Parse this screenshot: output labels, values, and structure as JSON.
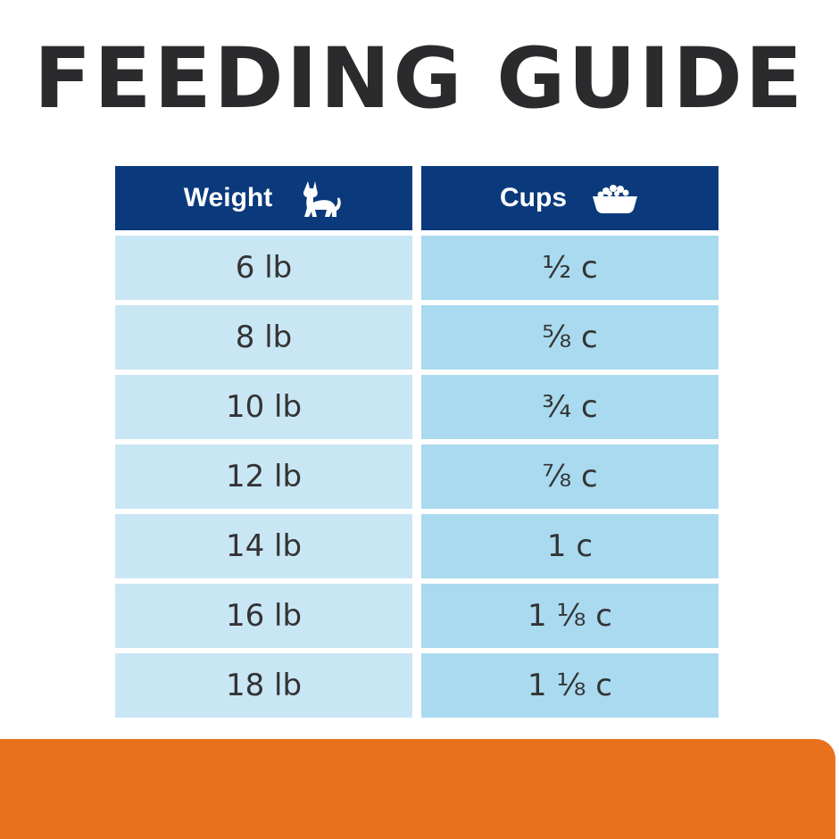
{
  "title": "FEEDING GUIDE",
  "table": {
    "headers": {
      "weight_label": "Weight",
      "weight_icon": "cat-icon",
      "cups_label": "Cups",
      "cups_icon": "food-bowl-icon"
    },
    "rows": [
      {
        "weight": "6 lb",
        "cups": "½ c"
      },
      {
        "weight": "8 lb",
        "cups": "⅝ c"
      },
      {
        "weight": "10 lb",
        "cups": "¾ c"
      },
      {
        "weight": "12 lb",
        "cups": "⅞ c"
      },
      {
        "weight": "14 lb",
        "cups": "1 c"
      },
      {
        "weight": "16 lb",
        "cups": "1 ⅛ c"
      },
      {
        "weight": "18 lb",
        "cups": "1 ⅛ c"
      }
    ]
  },
  "colors": {
    "header_bg": "#0b3a7c",
    "weight_cell_bg": "#c9e6f5",
    "cups_cell_bg": "#a9daef",
    "title_text": "#2b2b2d",
    "footer_bar": "#e8711e"
  }
}
